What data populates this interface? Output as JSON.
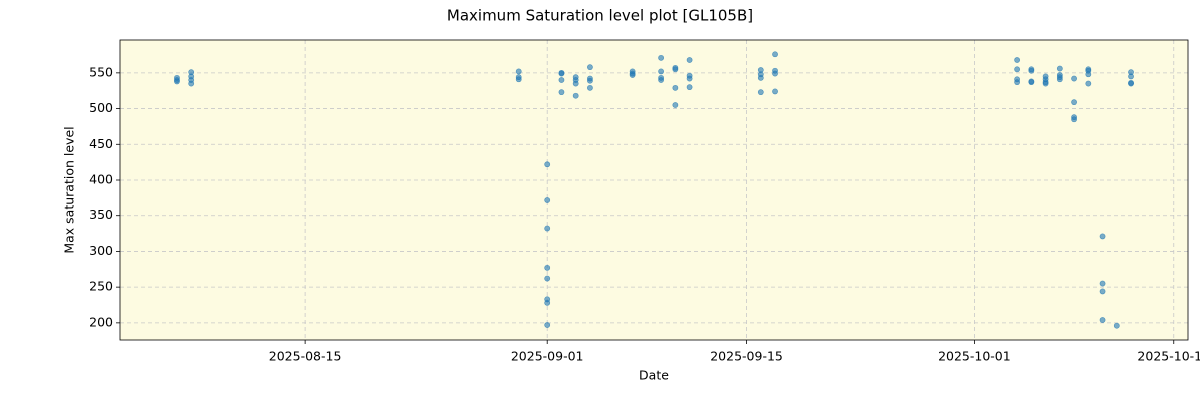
{
  "chart_data": {
    "type": "scatter",
    "title": "Maximum Saturation level plot [GL105B]",
    "x_label": "Date",
    "y_label": "Max saturation level",
    "color": "#1f77b4",
    "grid": true,
    "xlim": [
      "2025-08-02",
      "2025-10-16"
    ],
    "xticks": [
      "2025-08-15",
      "2025-09-01",
      "2025-09-15",
      "2025-10-01",
      "2025-10-15"
    ],
    "ylim": [
      176,
      596
    ],
    "yticks": [
      200,
      250,
      300,
      350,
      400,
      450,
      500,
      550
    ],
    "series": [
      {
        "name": "Max saturation level",
        "color": "#1f77b4",
        "x": [
          "2025-08-06",
          "2025-08-06",
          "2025-08-06",
          "2025-08-07",
          "2025-08-07",
          "2025-08-07",
          "2025-08-07",
          "2025-08-30",
          "2025-08-30",
          "2025-08-30",
          "2025-09-01",
          "2025-09-01",
          "2025-09-01",
          "2025-09-01",
          "2025-09-01",
          "2025-09-01",
          "2025-09-01",
          "2025-09-01",
          "2025-09-02",
          "2025-09-02",
          "2025-09-02",
          "2025-09-02",
          "2025-09-03",
          "2025-09-03",
          "2025-09-03",
          "2025-09-03",
          "2025-09-04",
          "2025-09-04",
          "2025-09-04",
          "2025-09-04",
          "2025-09-07",
          "2025-09-07",
          "2025-09-07",
          "2025-09-09",
          "2025-09-09",
          "2025-09-09",
          "2025-09-09",
          "2025-09-10",
          "2025-09-10",
          "2025-09-10",
          "2025-09-10",
          "2025-09-11",
          "2025-09-11",
          "2025-09-11",
          "2025-09-11",
          "2025-09-16",
          "2025-09-16",
          "2025-09-16",
          "2025-09-16",
          "2025-09-17",
          "2025-09-17",
          "2025-09-17",
          "2025-09-17",
          "2025-10-04",
          "2025-10-04",
          "2025-10-04",
          "2025-10-04",
          "2025-10-05",
          "2025-10-05",
          "2025-10-05",
          "2025-10-05",
          "2025-10-06",
          "2025-10-06",
          "2025-10-06",
          "2025-10-06",
          "2025-10-07",
          "2025-10-07",
          "2025-10-07",
          "2025-10-07",
          "2025-10-08",
          "2025-10-08",
          "2025-10-08",
          "2025-10-08",
          "2025-10-09",
          "2025-10-09",
          "2025-10-09",
          "2025-10-09",
          "2025-10-10",
          "2025-10-10",
          "2025-10-10",
          "2025-10-10",
          "2025-10-11",
          "2025-10-12",
          "2025-10-12",
          "2025-10-12",
          "2025-10-12"
        ],
        "values": [
          543,
          540,
          538,
          551,
          545,
          540,
          535,
          552,
          544,
          541,
          422,
          372,
          332,
          277,
          262,
          233,
          228,
          197,
          550,
          549,
          540,
          523,
          544,
          540,
          535,
          518,
          558,
          542,
          539,
          529,
          552,
          549,
          547,
          571,
          552,
          543,
          540,
          557,
          555,
          529,
          505,
          568,
          546,
          542,
          530,
          554,
          548,
          543,
          523,
          576,
          553,
          549,
          524,
          568,
          555,
          541,
          537,
          555,
          553,
          538,
          537,
          545,
          541,
          537,
          535,
          556,
          547,
          544,
          541,
          542,
          509,
          488,
          485,
          555,
          553,
          548,
          535,
          321,
          255,
          244,
          204,
          196,
          551,
          545,
          536,
          535
        ]
      }
    ]
  }
}
